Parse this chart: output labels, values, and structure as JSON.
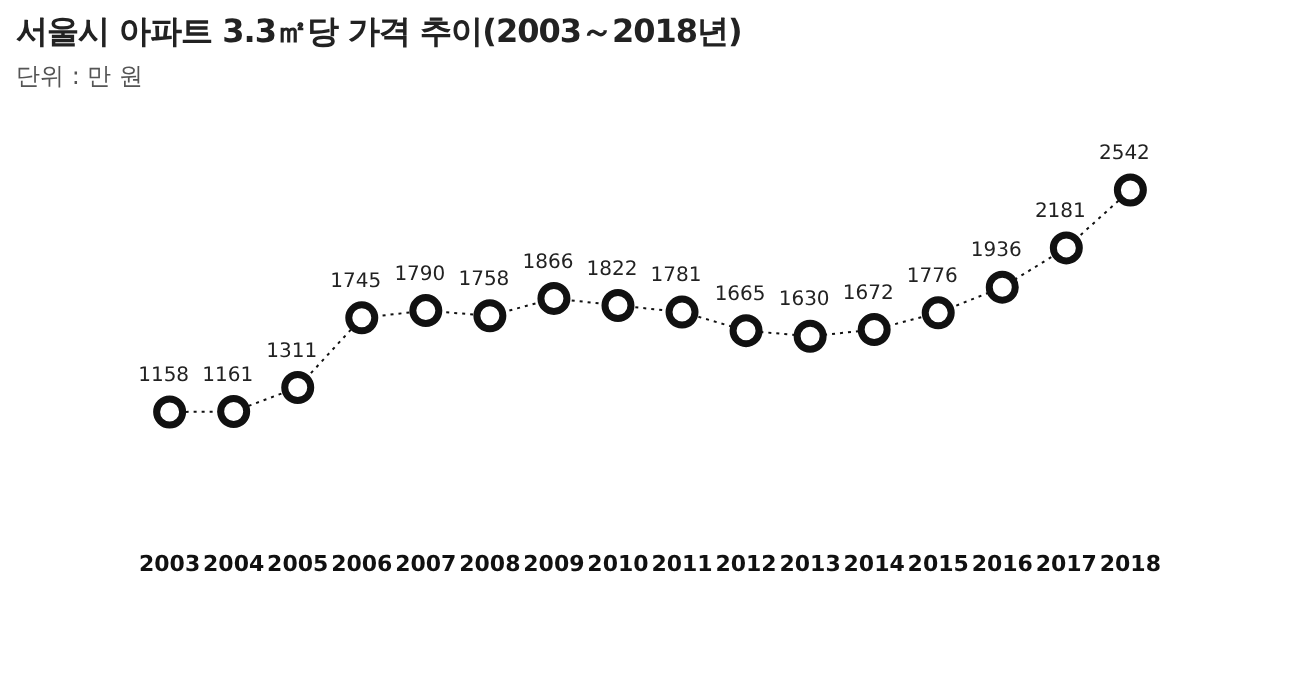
{
  "chart_data": {
    "type": "line",
    "title": "서울시 아파트 3.3㎡당 가격 추이(2003～2018년)",
    "subtitle": "단위 : 만 원",
    "categories": [
      "2003",
      "2004",
      "2005",
      "2006",
      "2007",
      "2008",
      "2009",
      "2010",
      "2011",
      "2012",
      "2013",
      "2014",
      "2015",
      "2016",
      "2017",
      "2018"
    ],
    "values": [
      1158,
      1161,
      1311,
      1745,
      1790,
      1758,
      1866,
      1822,
      1781,
      1665,
      1630,
      1672,
      1776,
      1936,
      2181,
      2542
    ],
    "color": "#111111",
    "marker": "circle",
    "line_style": "dotted",
    "data_labels": true,
    "grid": false,
    "legend": false
  }
}
